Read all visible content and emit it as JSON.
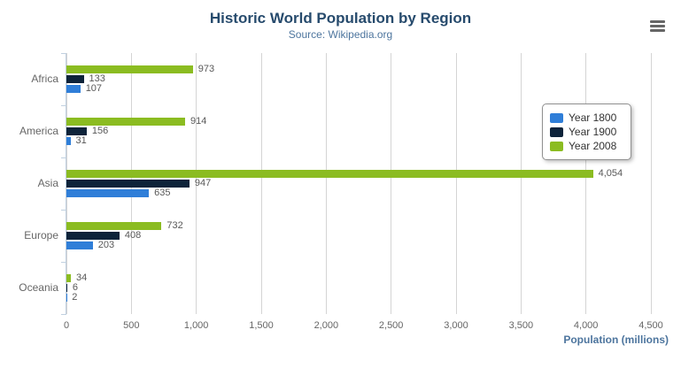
{
  "icons": {
    "context_menu": "hamburger-menu-icon"
  },
  "chart_data": {
    "type": "bar",
    "orientation": "horizontal",
    "title": "Historic World Population by Region",
    "subtitle": "Source: Wikipedia.org",
    "categories": [
      "Africa",
      "America",
      "Asia",
      "Europe",
      "Oceania"
    ],
    "series": [
      {
        "name": "Year 1800",
        "color": "#2f7ed8",
        "values": [
          107,
          31,
          635,
          203,
          2
        ]
      },
      {
        "name": "Year 1900",
        "color": "#0d233a",
        "values": [
          133,
          156,
          947,
          408,
          6
        ]
      },
      {
        "name": "Year 2008",
        "color": "#8bbc21",
        "values": [
          973,
          914,
          4054,
          732,
          34
        ]
      }
    ],
    "series_visual_order_top_to_bottom": [
      "Year 2008",
      "Year 1900",
      "Year 1800"
    ],
    "data_labels_visible": true,
    "xlabel": "Population (millions)",
    "xlim": [
      0,
      4500
    ],
    "x_ticks": [
      0,
      500,
      1000,
      1500,
      2000,
      2500,
      3000,
      3500,
      4000,
      4500
    ],
    "x_tick_labels": [
      "0",
      "500",
      "1,000",
      "1,500",
      "2,000",
      "2,500",
      "3,000",
      "3,500",
      "4,000",
      "4,500"
    ],
    "grid": true,
    "legend_position": "right-top"
  }
}
